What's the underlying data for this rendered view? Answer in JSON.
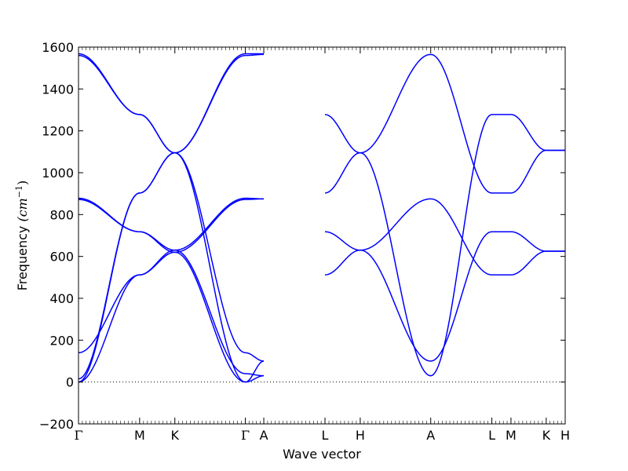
{
  "chart_data": {
    "type": "line",
    "title": "",
    "xlabel": "Wave vector",
    "ylabel_main": "Frequency ",
    "ylabel_unit_base": "(cm",
    "ylabel_unit_exp": "−1",
    "ylabel_unit_close": ")",
    "ylim": [
      -200,
      1600
    ],
    "yticks": [
      -200,
      0,
      200,
      400,
      600,
      800,
      1000,
      1200,
      1400,
      1600
    ],
    "xticks": [
      "Γ",
      "M",
      "K",
      "Γ",
      "A",
      "L",
      "H",
      "A",
      "L",
      "M",
      "K",
      "H"
    ],
    "xtick_positions": [
      0,
      0.789,
      1.244,
      2.154,
      2.392,
      3.182,
      3.637,
      4.547,
      5.336,
      5.583,
      6.038,
      6.283
    ],
    "series_color": "#0000ff",
    "zero_line": true,
    "grid": false,
    "series": [
      {
        "x": [
          0,
          0.789,
          1.244,
          2.154,
          2.392
        ],
        "y": [
          1568,
          1278,
          1095,
          1568,
          1568
        ]
      },
      {
        "x": [
          0,
          0.789,
          1.244,
          2.154,
          2.392
        ],
        "y": [
          1560,
          1278,
          1095,
          1560,
          1565
        ]
      },
      {
        "x": [
          0,
          0.789,
          1.244,
          2.154,
          2.392
        ],
        "y": [
          878,
          718,
          630,
          878,
          875
        ]
      },
      {
        "x": [
          0,
          0.789,
          1.244,
          2.154,
          2.392
        ],
        "y": [
          872,
          718,
          620,
          872,
          875
        ]
      },
      {
        "x": [
          0,
          0.789,
          1.244,
          2.154,
          2.392
        ],
        "y": [
          0,
          903,
          1095,
          0,
          30
        ]
      },
      {
        "x": [
          0,
          0.789,
          1.244,
          2.154,
          2.392
        ],
        "y": [
          15,
          903,
          1095,
          140,
          100
        ]
      },
      {
        "x": [
          0,
          0.789,
          1.244,
          2.154,
          2.392
        ],
        "y": [
          0,
          512,
          630,
          40,
          30
        ]
      },
      {
        "x": [
          0,
          0.789,
          1.244,
          2.154,
          2.392
        ],
        "y": [
          140,
          512,
          620,
          0,
          100
        ]
      },
      {
        "x": [
          3.182,
          3.637,
          4.547,
          5.336,
          5.583,
          6.038,
          6.283
        ],
        "y": [
          1278,
          1095,
          30,
          1278,
          1278,
          1107,
          1107
        ]
      },
      {
        "x": [
          3.182,
          3.637,
          4.547,
          5.336,
          5.583,
          6.038,
          6.283
        ],
        "y": [
          903,
          1095,
          1565,
          903,
          903,
          1107,
          1107
        ]
      },
      {
        "x": [
          3.182,
          3.637,
          4.547,
          5.336,
          5.583,
          6.038,
          6.283
        ],
        "y": [
          718,
          630,
          100,
          718,
          718,
          625,
          625
        ]
      },
      {
        "x": [
          3.182,
          3.637,
          4.547,
          5.336,
          5.583,
          6.038,
          6.283
        ],
        "y": [
          512,
          630,
          875,
          512,
          512,
          625,
          625
        ]
      }
    ]
  }
}
